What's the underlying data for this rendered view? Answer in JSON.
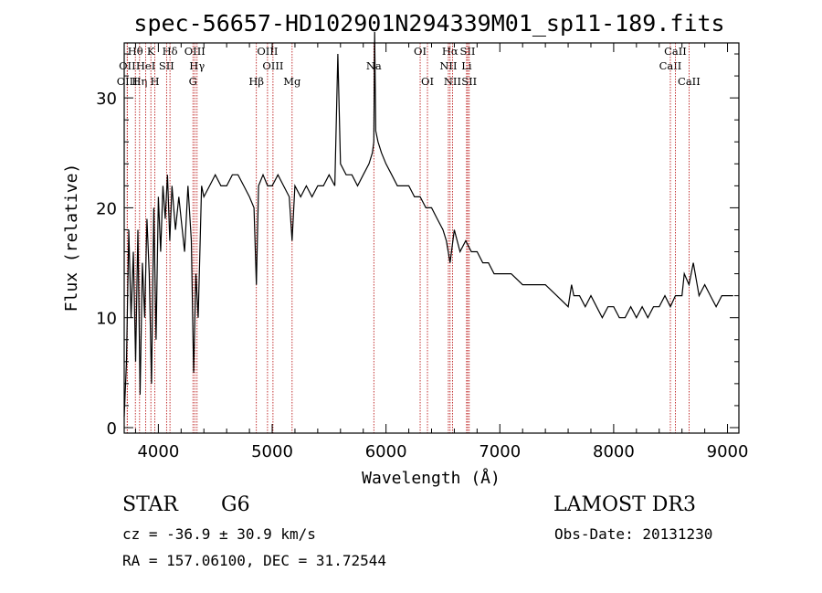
{
  "chart_data": {
    "type": "line",
    "title": "spec-56657-HD102901N294339M01_sp11-189.fits",
    "xlabel": "Wavelength (Å)",
    "ylabel": "Flux (relative)",
    "xlim": [
      3700,
      9100
    ],
    "ylim": [
      -0.5,
      35
    ],
    "xticks": [
      4000,
      5000,
      6000,
      7000,
      8000,
      9000
    ],
    "yticks": [
      0,
      10,
      20,
      30
    ],
    "grid": false,
    "series": [
      {
        "values_x": [
          3700,
          3720,
          3740,
          3760,
          3780,
          3800,
          3820,
          3840,
          3860,
          3880,
          3900,
          3920,
          3940,
          3960,
          3980,
          4000,
          4020,
          4040,
          4060,
          4080,
          4100,
          4120,
          4150,
          4180,
          4200,
          4230,
          4260,
          4290,
          4310,
          4330,
          4350,
          4380,
          4400,
          4450,
          4500,
          4550,
          4600,
          4650,
          4700,
          4750,
          4800,
          4840,
          4861,
          4880,
          4920,
          4960,
          5000,
          5050,
          5100,
          5150,
          5175,
          5200,
          5250,
          5300,
          5350,
          5400,
          5450,
          5500,
          5550,
          5577,
          5600,
          5650,
          5700,
          5750,
          5800,
          5850,
          5880,
          5893,
          5900,
          5910,
          5930,
          5960,
          6000,
          6050,
          6100,
          6150,
          6200,
          6250,
          6300,
          6350,
          6400,
          6450,
          6500,
          6530,
          6563,
          6600,
          6650,
          6700,
          6750,
          6800,
          6850,
          6900,
          6950,
          7000,
          7100,
          7200,
          7300,
          7400,
          7500,
          7600,
          7630,
          7650,
          7700,
          7750,
          7800,
          7850,
          7900,
          7950,
          8000,
          8050,
          8100,
          8150,
          8200,
          8250,
          8300,
          8350,
          8400,
          8450,
          8498,
          8542,
          8600,
          8620,
          8662,
          8700,
          8750,
          8800,
          8850,
          8900,
          8950,
          9000,
          9050
        ],
        "values_y": [
          1,
          6,
          18,
          10,
          16,
          6,
          18,
          3,
          15,
          10,
          19,
          14,
          4,
          20,
          8,
          21,
          16,
          22,
          19,
          23,
          17,
          22,
          18,
          21,
          19,
          16,
          22,
          17,
          5,
          14,
          10,
          22,
          21,
          22,
          23,
          22,
          22,
          23,
          23,
          22,
          21,
          20,
          13,
          22,
          23,
          22,
          22,
          23,
          22,
          21,
          17,
          22,
          21,
          22,
          21,
          22,
          22,
          23,
          22,
          34,
          24,
          23,
          23,
          22,
          23,
          24,
          25,
          26,
          36,
          27,
          26,
          25,
          24,
          23,
          22,
          22,
          22,
          21,
          21,
          20,
          20,
          19,
          18,
          17,
          15,
          18,
          16,
          17,
          16,
          16,
          15,
          15,
          14,
          14,
          14,
          13,
          13,
          13,
          12,
          11,
          13,
          12,
          12,
          11,
          12,
          11,
          10,
          11,
          11,
          10,
          10,
          11,
          10,
          11,
          10,
          11,
          11,
          12,
          11,
          12,
          12,
          14,
          13,
          15,
          12,
          13,
          12,
          11,
          12,
          12,
          12
        ]
      }
    ],
    "lines": [
      {
        "name": "Hθ",
        "x": 3798,
        "row": 1
      },
      {
        "name": "OII",
        "x": 3727,
        "row": 2
      },
      {
        "name": "OIII",
        "x": 3726,
        "row": 3
      },
      {
        "name": "Hη",
        "x": 3835,
        "row": 3
      },
      {
        "name": "HeI",
        "x": 3889,
        "row": 2
      },
      {
        "name": "K",
        "x": 3934,
        "row": 1
      },
      {
        "name": "H",
        "x": 3969,
        "row": 3
      },
      {
        "name": "SII",
        "x": 4072,
        "row": 2
      },
      {
        "name": "Hδ",
        "x": 4102,
        "row": 1
      },
      {
        "name": "OIII",
        "x": 4320,
        "row": 1
      },
      {
        "name": "Hγ",
        "x": 4340,
        "row": 2
      },
      {
        "name": "G",
        "x": 4304,
        "row": 3
      },
      {
        "name": "Hβ",
        "x": 4861,
        "row": 3
      },
      {
        "name": "OIII",
        "x": 4959,
        "row": 1
      },
      {
        "name": "OIII",
        "x": 5007,
        "row": 2
      },
      {
        "name": "Mg",
        "x": 5175,
        "row": 3
      },
      {
        "name": "Na",
        "x": 5893,
        "row": 2
      },
      {
        "name": "OI",
        "x": 6300,
        "row": 1
      },
      {
        "name": "OI",
        "x": 6364,
        "row": 3
      },
      {
        "name": "Hα",
        "x": 6563,
        "row": 1
      },
      {
        "name": "NII",
        "x": 6548,
        "row": 2
      },
      {
        "name": "NII",
        "x": 6584,
        "row": 3
      },
      {
        "name": "SII",
        "x": 6717,
        "row": 1
      },
      {
        "name": "Li",
        "x": 6708,
        "row": 2
      },
      {
        "name": "SII",
        "x": 6731,
        "row": 3
      },
      {
        "name": "CaII",
        "x": 8498,
        "row": 2
      },
      {
        "name": "CaII",
        "x": 8542,
        "row": 1
      },
      {
        "name": "CaII",
        "x": 8662,
        "row": 3
      }
    ]
  },
  "info": {
    "object_type": "STAR",
    "subclass": "G6",
    "survey": "LAMOST DR3",
    "redshift_line": "cz = -36.9 ± 30.9 km/s",
    "obs_date": "Obs-Date: 20131230",
    "coords": "RA = 157.06100, DEC =  31.72544"
  }
}
